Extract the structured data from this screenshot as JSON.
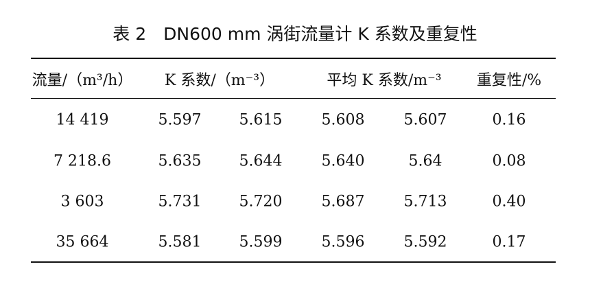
{
  "title": "表 2　DN600 mm 涡街流量计 K 系数及重复性",
  "table": {
    "headers": [
      "流量/（m³/h）",
      "K 系数/（m⁻³）",
      "平均 K 系数/m⁻³",
      "重复性/%"
    ],
    "rows": [
      [
        "14 419",
        "5.597",
        "5.615",
        "5.608",
        "5.607",
        "0.16"
      ],
      [
        "7 218.6",
        "5.635",
        "5.644",
        "5.640",
        "5.64",
        "0.08"
      ],
      [
        "3 603",
        "5.731",
        "5.720",
        "5.687",
        "5.713",
        "0.40"
      ],
      [
        "35 664",
        "5.581",
        "5.599",
        "5.596",
        "5.592",
        "0.17"
      ]
    ]
  }
}
